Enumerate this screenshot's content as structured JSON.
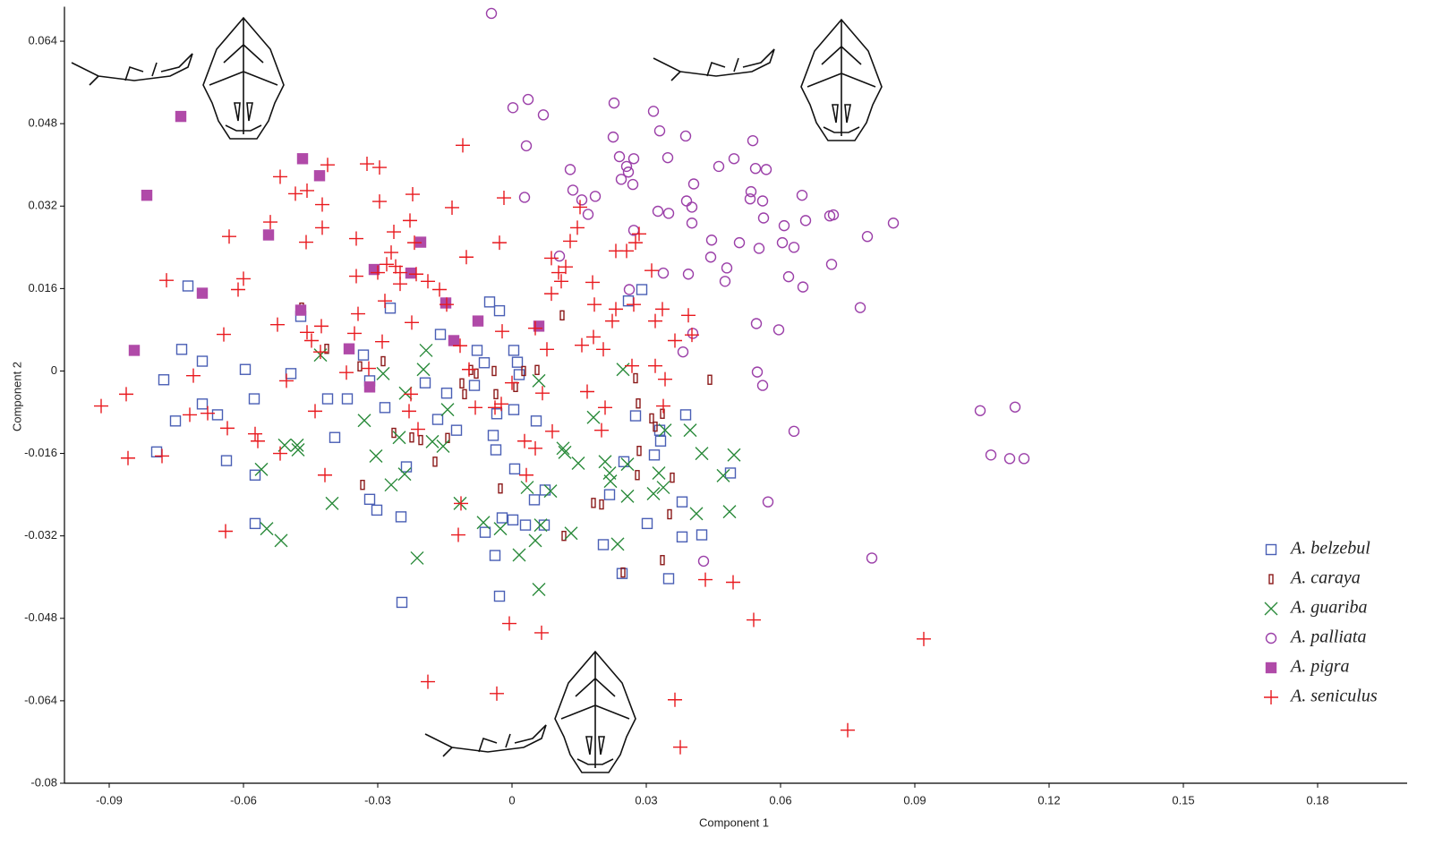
{
  "chart_data": {
    "type": "scatter",
    "x_label": "Component 1",
    "y_label": "Component 2",
    "xlim": [
      -0.1,
      0.2
    ],
    "ylim": [
      -0.08,
      0.07
    ],
    "xticks": [
      -0.09,
      -0.06,
      -0.03,
      0,
      0.03,
      0.06,
      0.09,
      0.12,
      0.15,
      0.18
    ],
    "yticks": [
      -0.08,
      -0.064,
      -0.048,
      -0.032,
      -0.016,
      0,
      0.016,
      0.032,
      0.048,
      0.064
    ],
    "grid": false,
    "legend": "lower right",
    "series": [
      {
        "name": "A. belzebul",
        "color": "#4a5fb5",
        "marker": "square",
        "x": [
          -0.0724,
          -0.0738,
          -0.0692,
          -0.0778,
          -0.0752,
          -0.0692,
          -0.0658,
          -0.0794,
          -0.0638,
          -0.0596,
          -0.0576,
          -0.0574,
          -0.0574,
          -0.0494,
          -0.0472,
          -0.0412,
          -0.0368,
          -0.0396,
          -0.0332,
          -0.0318,
          -0.0272,
          -0.0284,
          -0.0318,
          -0.0302,
          -0.0248,
          -0.0236,
          -0.0246,
          -0.0194,
          -0.016,
          -0.0166,
          -0.0146,
          -0.0124,
          -0.0078,
          -0.0062,
          -0.005,
          -0.0028,
          0.0004,
          0.0012,
          0.0016,
          -0.0034,
          0.0004,
          0.0054,
          -0.0042,
          -0.0036,
          0.0006,
          0.005,
          0.0074,
          0.0072,
          -0.0022,
          0.0002,
          0.003,
          -0.006,
          -0.0038,
          -0.0028,
          -0.0084,
          0.029,
          0.026,
          0.0276,
          0.025,
          0.0218,
          0.0204,
          0.0302,
          0.0318,
          0.0332,
          0.033,
          0.0388,
          0.038,
          0.038,
          0.0424,
          0.035,
          0.0246,
          0.0488
        ],
        "values": [
          0.0165,
          0.0042,
          0.0019,
          -0.0017,
          -0.0097,
          -0.0064,
          -0.0085,
          -0.0157,
          -0.0174,
          0.0003,
          -0.0054,
          -0.0202,
          -0.0296,
          -0.0005,
          0.0106,
          -0.0054,
          -0.0054,
          -0.0129,
          0.0031,
          -0.0019,
          0.0122,
          -0.0071,
          -0.0249,
          -0.027,
          -0.0283,
          -0.0186,
          -0.0449,
          -0.0023,
          0.0071,
          -0.0094,
          -0.0043,
          -0.0115,
          0.004,
          0.0016,
          0.0134,
          0.0117,
          0.004,
          0.0017,
          -0.0007,
          -0.0083,
          -0.0075,
          -0.0097,
          -0.0125,
          -0.0153,
          -0.019,
          -0.025,
          -0.0231,
          -0.0299,
          -0.0285,
          -0.0289,
          -0.0299,
          -0.0313,
          -0.0358,
          -0.0437,
          -0.0028,
          0.0158,
          0.0136,
          -0.0087,
          -0.0176,
          -0.024,
          -0.0337,
          -0.0296,
          -0.0163,
          -0.0136,
          -0.0115,
          -0.0085,
          -0.0254,
          -0.0322,
          -0.0318,
          -0.0403,
          -0.0393,
          -0.0198
        ]
      },
      {
        "name": "A. caraya",
        "color": "#8b1a1a",
        "marker": "bar",
        "x": [
          -0.047,
          -0.0414,
          -0.034,
          -0.0334,
          -0.0288,
          -0.0264,
          -0.0224,
          -0.0204,
          -0.0172,
          -0.0144,
          -0.0112,
          -0.0106,
          -0.0092,
          -0.008,
          -0.004,
          -0.0036,
          -0.0026,
          0.0008,
          0.0026,
          0.0056,
          0.0112,
          0.0182,
          0.02,
          0.0116,
          0.0282,
          0.028,
          0.0284,
          0.0312,
          0.032,
          0.0336,
          0.0358,
          0.0352,
          0.0336,
          0.0442,
          0.0276,
          0.0248
        ],
        "values": [
          0.0123,
          0.0043,
          0.0009,
          -0.0221,
          0.0019,
          -0.012,
          -0.0129,
          -0.0134,
          -0.0176,
          -0.013,
          -0.0024,
          -0.0045,
          0.0002,
          -0.0005,
          0,
          -0.0045,
          -0.0228,
          -0.0031,
          0,
          0.0002,
          0.0108,
          -0.0256,
          -0.0259,
          -0.032,
          -0.0063,
          -0.0202,
          -0.0155,
          -0.0092,
          -0.0108,
          -0.0083,
          -0.0207,
          -0.0278,
          -0.0367,
          -0.0017,
          -0.0014,
          -0.0391
        ]
      },
      {
        "name": "A. guariba",
        "color": "#2a8a3a",
        "marker": "x",
        "x": [
          -0.056,
          -0.0548,
          -0.0516,
          -0.0508,
          -0.048,
          -0.0478,
          -0.0428,
          -0.0402,
          -0.033,
          -0.0304,
          -0.0288,
          -0.027,
          -0.0252,
          -0.0238,
          -0.024,
          -0.0212,
          -0.0192,
          -0.0198,
          -0.0178,
          -0.0154,
          -0.0144,
          -0.0116,
          -0.0064,
          -0.0026,
          0.0016,
          0.0034,
          0.0052,
          0.0064,
          0.006,
          0.0086,
          0.0114,
          0.0118,
          0.0132,
          0.0148,
          0.0182,
          0.0208,
          0.0218,
          0.022,
          0.0236,
          0.0248,
          0.0258,
          0.0258,
          0.0316,
          0.0328,
          0.0338,
          0.0342,
          0.0398,
          0.0412,
          0.0424,
          0.0472,
          0.0486,
          0.0496,
          0.006
        ],
        "values": [
          -0.0191,
          -0.0306,
          -0.0329,
          -0.0144,
          -0.0144,
          -0.0153,
          0.0031,
          -0.0257,
          -0.0096,
          -0.0165,
          -0.0005,
          -0.0221,
          -0.0129,
          -0.0043,
          -0.02,
          -0.0363,
          0.004,
          0.0003,
          -0.0137,
          -0.0146,
          -0.0075,
          -0.0257,
          -0.0294,
          -0.0306,
          -0.0357,
          -0.0226,
          -0.0329,
          -0.0299,
          -0.0019,
          -0.0233,
          -0.015,
          -0.0158,
          -0.0315,
          -0.0179,
          -0.009,
          -0.0176,
          -0.0198,
          -0.0214,
          -0.0336,
          0.0003,
          -0.0243,
          -0.0181,
          -0.0238,
          -0.0198,
          -0.0226,
          -0.0115,
          -0.0115,
          -0.0277,
          -0.016,
          -0.0203,
          -0.0273,
          -0.0163,
          -0.0424
        ]
      },
      {
        "name": "A. palliata",
        "color": "#9b3fa8",
        "marker": "circle",
        "x": [
          -0.0046,
          0.0002,
          0.0036,
          0.007,
          0.0032,
          0.0228,
          0.0316,
          0.013,
          0.0028,
          0.0136,
          0.0156,
          0.0186,
          0.017,
          0.0226,
          0.024,
          0.0256,
          0.026,
          0.0272,
          0.0244,
          0.027,
          0.033,
          0.0348,
          0.0388,
          0.0326,
          0.035,
          0.0406,
          0.039,
          0.0402,
          0.0402,
          0.0462,
          0.0496,
          0.0538,
          0.0544,
          0.0568,
          0.0534,
          0.0532,
          0.056,
          0.0562,
          0.0608,
          0.0604,
          0.063,
          0.0648,
          0.0656,
          0.0718,
          0.071,
          0.0794,
          0.0852,
          0.0446,
          0.0444,
          0.0508,
          0.0552,
          0.048,
          0.0476,
          0.0618,
          0.065,
          0.0714,
          0.0394,
          0.0338,
          0.0272,
          0.0106,
          0.0778,
          0.0546,
          0.0596,
          0.0404,
          0.0382,
          0.0548,
          0.056,
          0.063,
          0.0572,
          0.0804,
          0.0428,
          0.1046,
          0.1124,
          0.107,
          0.1112,
          0.1144,
          0.0262
        ],
        "values": [
          0.0694,
          0.0511,
          0.0527,
          0.0497,
          0.0437,
          0.052,
          0.0504,
          0.0391,
          0.0337,
          0.0351,
          0.0332,
          0.0339,
          0.0304,
          0.0454,
          0.0416,
          0.0397,
          0.0386,
          0.0412,
          0.0372,
          0.0362,
          0.0466,
          0.0414,
          0.0456,
          0.031,
          0.0306,
          0.0363,
          0.033,
          0.0318,
          0.0287,
          0.0397,
          0.0412,
          0.0447,
          0.0393,
          0.0391,
          0.0348,
          0.0334,
          0.033,
          0.0297,
          0.0282,
          0.0249,
          0.024,
          0.0341,
          0.0292,
          0.0303,
          0.0301,
          0.0261,
          0.0287,
          0.0254,
          0.0221,
          0.0249,
          0.0238,
          0.02,
          0.0174,
          0.0183,
          0.0163,
          0.0207,
          0.0188,
          0.019,
          0.0273,
          0.0223,
          0.0123,
          0.0092,
          0.008,
          0.0073,
          0.0037,
          -0.0002,
          -0.0028,
          -0.0117,
          -0.0254,
          -0.0363,
          -0.0369,
          -0.0077,
          -0.007,
          -0.0163,
          -0.017,
          -0.017,
          0.0158
        ]
      },
      {
        "name": "A. pigra",
        "color": "#b04aa8",
        "marker": "filled-square",
        "x": [
          -0.074,
          -0.0816,
          -0.0844,
          -0.0692,
          -0.0544,
          -0.0468,
          -0.043,
          -0.0472,
          -0.0308,
          -0.0364,
          -0.0226,
          -0.0204,
          -0.0148,
          -0.013,
          -0.0076,
          0.006,
          -0.0318
        ],
        "values": [
          0.0494,
          0.0341,
          0.004,
          0.0151,
          0.0264,
          0.0412,
          0.0379,
          0.0118,
          0.0197,
          0.0043,
          0.019,
          0.025,
          0.0132,
          0.0059,
          0.0097,
          0.0087,
          -0.0031
        ]
      },
      {
        "name": "A. seniculus",
        "color": "#e8191e",
        "marker": "plus",
        "x": [
          -0.0918,
          -0.0862,
          -0.0858,
          -0.0782,
          -0.0772,
          -0.0712,
          -0.072,
          -0.068,
          -0.0644,
          -0.0636,
          -0.0632,
          -0.0612,
          -0.06,
          -0.064,
          -0.0574,
          -0.0568,
          -0.054,
          -0.0524,
          -0.0518,
          -0.0504,
          -0.0518,
          -0.0484,
          -0.0458,
          -0.046,
          -0.0458,
          -0.0448,
          -0.044,
          -0.0428,
          -0.0424,
          -0.0424,
          -0.0426,
          -0.0418,
          -0.0412,
          -0.037,
          -0.0348,
          -0.0348,
          -0.0352,
          -0.0344,
          -0.032,
          -0.0324,
          -0.0296,
          -0.0296,
          -0.03,
          -0.029,
          -0.0284,
          -0.027,
          -0.0264,
          -0.028,
          -0.026,
          -0.025,
          -0.025,
          -0.0228,
          -0.0222,
          -0.0218,
          -0.0224,
          -0.0214,
          -0.0188,
          -0.0188,
          -0.0162,
          -0.0146,
          -0.0134,
          -0.012,
          -0.0116,
          -0.0114,
          -0.011,
          -0.0102,
          -0.0096,
          -0.0082,
          -0.0038,
          -0.0024,
          -0.0018,
          -0.0028,
          -0.0022,
          -0.0006,
          0,
          0.0028,
          0.0032,
          0.0052,
          0.0052,
          0.0066,
          0.0068,
          0.0088,
          0.009,
          0.0088,
          0.0078,
          0.0104,
          0.011,
          0.012,
          0.013,
          0.0146,
          0.0152,
          0.0156,
          0.0168,
          0.018,
          0.0184,
          0.0182,
          0.02,
          0.0204,
          0.0208,
          0.0224,
          0.0232,
          0.0232,
          0.0256,
          0.0268,
          0.0272,
          0.0276,
          0.0284,
          0.0312,
          0.032,
          0.032,
          0.0336,
          0.0338,
          0.0364,
          0.0394,
          0.0402,
          0.0342,
          0.0432,
          0.0494,
          0.054,
          0.092,
          0.075,
          0.0364,
          0.0376,
          -0.0034,
          -0.021,
          -0.023,
          -0.0226
        ],
        "values": [
          -0.0068,
          -0.0045,
          -0.0169,
          -0.0165,
          0.0176,
          -0.0009,
          -0.0085,
          -0.0082,
          0.0071,
          -0.0111,
          0.0261,
          0.0158,
          0.0179,
          -0.0311,
          -0.0122,
          -0.0136,
          0.0289,
          0.009,
          0.0377,
          -0.0019,
          -0.016,
          0.0344,
          0.035,
          0.025,
          0.0075,
          0.0059,
          -0.0078,
          0.0037,
          0.0323,
          0.0278,
          0.0087,
          -0.0202,
          0.04,
          -0.0003,
          0.0257,
          0.0184,
          0.0073,
          0.0111,
          0.0005,
          0.0402,
          0.0395,
          0.0329,
          0.0191,
          0.0057,
          0.0136,
          0.023,
          0.027,
          0.0207,
          0.0203,
          0.0191,
          0.0169,
          0.0292,
          0.0343,
          0.0249,
          0.0094,
          0.0188,
          0.0174,
          -0.0603,
          0.0158,
          0.0129,
          0.0317,
          -0.0318,
          0.0049,
          -0.0257,
          0.0438,
          0.0221,
          0.0003,
          -0.0071,
          -0.0071,
          -0.0064,
          0.0336,
          0.0249,
          0.0077,
          -0.049,
          -0.0023,
          -0.0136,
          -0.0202,
          0.0083,
          -0.015,
          -0.0508,
          -0.0043,
          0.0219,
          -0.0117,
          0.015,
          0.0042,
          0.0191,
          0.0174,
          0.0202,
          0.0252,
          0.0278,
          0.0318,
          0.005,
          -0.004,
          0.0172,
          0.0129,
          0.0066,
          -0.0115,
          0.0042,
          -0.0071,
          0.0097,
          0.012,
          0.0233,
          0.0233,
          0.001,
          0.0129,
          0.0249,
          0.0266,
          0.0195,
          0.001,
          0.0097,
          0.012,
          -0.0068,
          0.0059,
          0.0108,
          0.007,
          -0.0016,
          -0.0405,
          -0.041,
          -0.0483,
          -0.052,
          -0.0697,
          -0.0638,
          -0.073,
          -0.0626,
          -0.0113,
          -0.0078,
          -0.0045
        ]
      }
    ]
  }
}
